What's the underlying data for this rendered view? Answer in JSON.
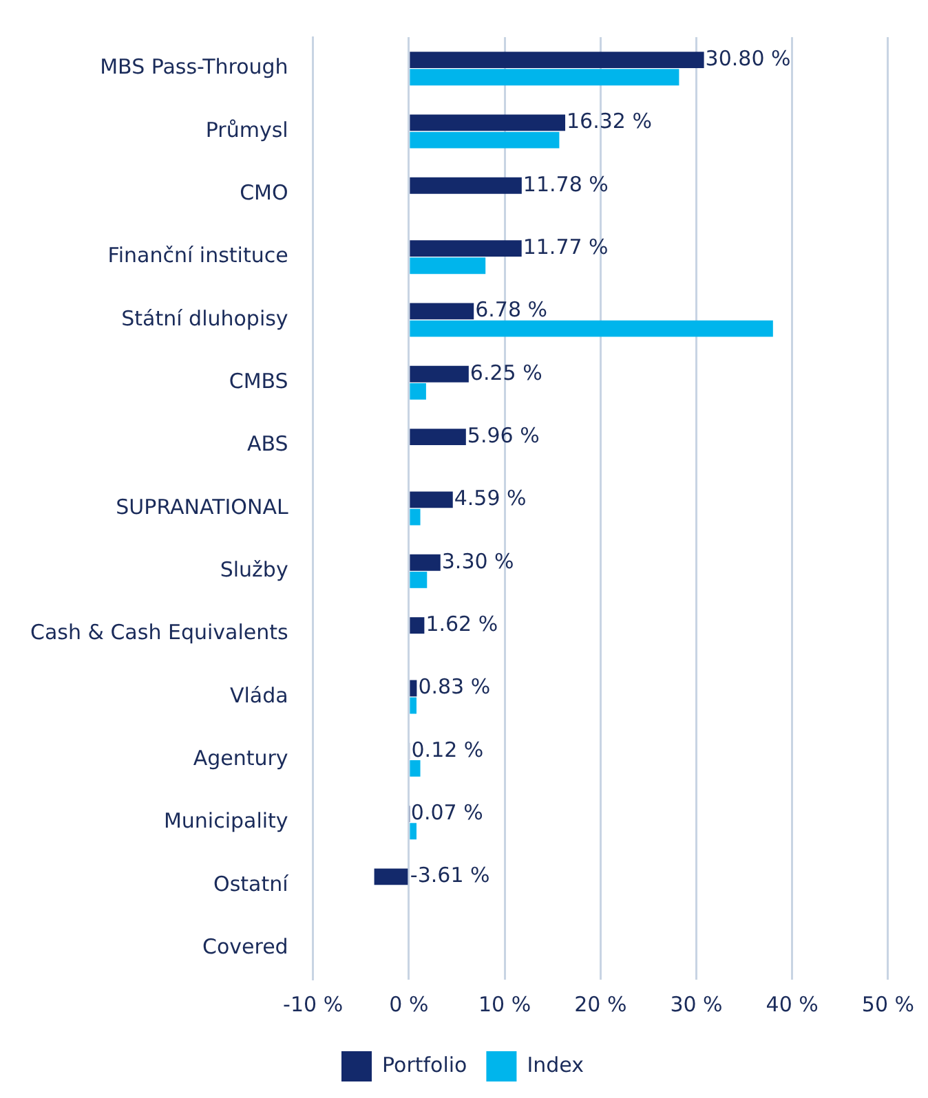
{
  "chart_data": {
    "type": "bar",
    "orientation": "horizontal",
    "categories": [
      "MBS Pass-Through",
      "Průmysl",
      "CMO",
      "Finanční instituce",
      "Státní dluhopisy",
      "CMBS",
      "ABS",
      "SUPRANATIONAL",
      "Služby",
      "Cash & Cash Equivalents",
      "Vláda",
      "Agentury",
      "Municipality",
      "Ostatní",
      "Covered"
    ],
    "series": [
      {
        "name": "Portfolio",
        "color": "#13296b",
        "values": [
          30.8,
          16.32,
          11.78,
          11.77,
          6.78,
          6.25,
          5.96,
          4.59,
          3.3,
          1.62,
          0.83,
          0.12,
          0.07,
          -3.61,
          null
        ],
        "value_labels": [
          "30.80 %",
          "16.32 %",
          "11.78 %",
          "11.77 %",
          "6.78 %",
          "6.25 %",
          "5.96 %",
          "4.59 %",
          "3.30 %",
          "1.62 %",
          "0.83 %",
          "0.12 %",
          "0.07 %",
          "-3.61 %",
          null
        ]
      },
      {
        "name": "Index",
        "color": "#00b5ec",
        "values": [
          28.2,
          15.7,
          null,
          8.0,
          38.0,
          1.8,
          null,
          1.2,
          1.9,
          null,
          0.8,
          1.2,
          0.8,
          null,
          null
        ]
      }
    ],
    "xlim": [
      -10,
      50
    ],
    "xticks": [
      {
        "value": -10,
        "label": "-10 %"
      },
      {
        "value": 0,
        "label": "0 %"
      },
      {
        "value": 10,
        "label": "10 %"
      },
      {
        "value": 20,
        "label": "20 %"
      },
      {
        "value": 30,
        "label": "30 %"
      },
      {
        "value": 40,
        "label": "40 %"
      },
      {
        "value": 50,
        "label": "50 %"
      }
    ],
    "grid": "x",
    "legend": "bottom"
  }
}
